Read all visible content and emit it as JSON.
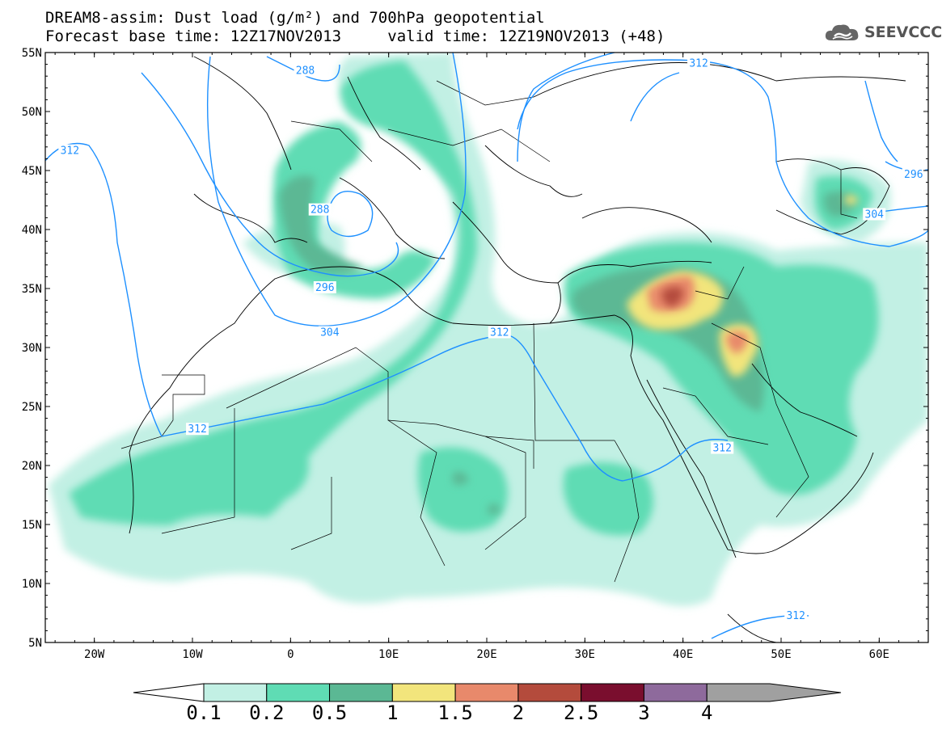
{
  "title": {
    "line1": "DREAM8-assim: Dust load (g/m²) and 700hPa geopotential",
    "line2_left": "Forecast base time: 12Z17NOV2013",
    "line2_right": "valid time: 12Z19NOV2013 (+48)"
  },
  "logo": {
    "text": "SEEVCCC",
    "icon": "cloud-icon"
  },
  "map": {
    "lat_labels": [
      "55N",
      "50N",
      "45N",
      "40N",
      "35N",
      "30N",
      "25N",
      "20N",
      "15N",
      "10N",
      "5N"
    ],
    "lat_values": [
      55,
      50,
      45,
      40,
      35,
      30,
      25,
      20,
      15,
      10,
      5
    ],
    "lon_labels": [
      "20W",
      "10W",
      "0",
      "10E",
      "20E",
      "30E",
      "40E",
      "50E",
      "60E"
    ],
    "lon_values": [
      -20,
      -10,
      0,
      10,
      20,
      30,
      40,
      50,
      60
    ],
    "lon_range": [
      -25,
      65
    ],
    "lat_range": [
      5,
      55
    ],
    "contour_labels": [
      {
        "text": "288",
        "lon": 1.5,
        "lat": 53.4
      },
      {
        "text": "288",
        "lon": 3.0,
        "lat": 41.6
      },
      {
        "text": "296",
        "lon": 3.5,
        "lat": 35.0
      },
      {
        "text": "304",
        "lon": 4.0,
        "lat": 31.2
      },
      {
        "text": "312",
        "lon": -22.5,
        "lat": 46.6
      },
      {
        "text": "312",
        "lon": 41.6,
        "lat": 54.0
      },
      {
        "text": "312",
        "lon": 21.3,
        "lat": 31.2
      },
      {
        "text": "312",
        "lon": -9.5,
        "lat": 23.0
      },
      {
        "text": "312",
        "lon": 44.0,
        "lat": 21.4
      },
      {
        "text": "312",
        "lon": 51.5,
        "lat": 7.2
      },
      {
        "text": "296",
        "lon": 63.5,
        "lat": 44.6
      },
      {
        "text": "304",
        "lon": 59.5,
        "lat": 41.2
      }
    ]
  },
  "colorbar": {
    "labels": [
      "0.1",
      "0.2",
      "0.5",
      "1",
      "1.5",
      "2",
      "2.5",
      "3",
      "4"
    ],
    "colors": [
      "#c2f0e4",
      "#5fdcb4",
      "#5bb894",
      "#f2e57c",
      "#e8896b",
      "#b44b3c",
      "#7a0e2e",
      "#8e6a9c",
      "#a0a0a0"
    ]
  }
}
